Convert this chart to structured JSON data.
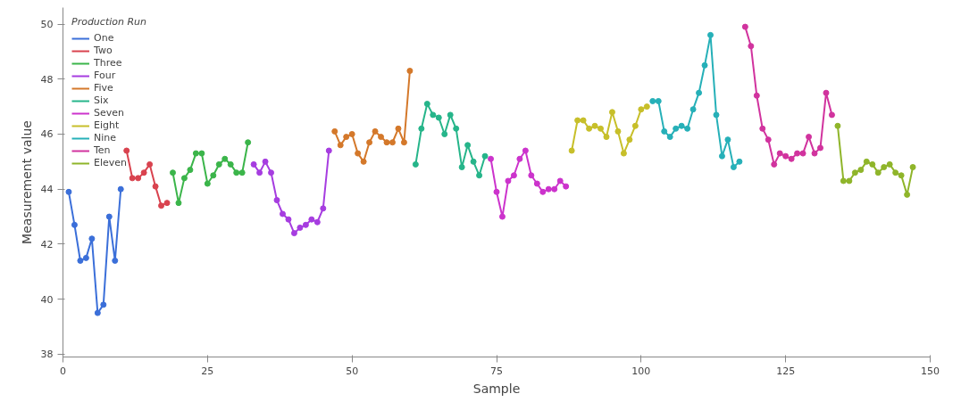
{
  "chart_data": {
    "type": "line",
    "xlabel": "Sample",
    "ylabel": "Measurement value",
    "legend_title": "Production Run",
    "legend": "top left",
    "marker": "circle",
    "grid": false,
    "xlim": [
      0,
      150
    ],
    "xticks": [
      0,
      25,
      50,
      75,
      100,
      125,
      150
    ],
    "ylim": [
      37.9,
      50.6
    ],
    "yticks": [
      38,
      40,
      42,
      44,
      46,
      48,
      50
    ],
    "series": [
      {
        "name": "One",
        "color": "#3b6fd9",
        "x": [
          1,
          2,
          3,
          4,
          5,
          6,
          7,
          8,
          9,
          10
        ],
        "values": [
          43.9,
          42.7,
          41.4,
          41.5,
          42.2,
          39.5,
          39.8,
          43.0,
          41.4,
          44.0
        ]
      },
      {
        "name": "Two",
        "color": "#d9434f",
        "x": [
          11,
          12,
          13,
          14,
          15,
          16,
          17,
          18
        ],
        "values": [
          45.4,
          44.4,
          44.4,
          44.6,
          44.9,
          44.1,
          43.4,
          43.5
        ]
      },
      {
        "name": "Three",
        "color": "#3bb54a",
        "x": [
          19,
          20,
          21,
          22,
          23,
          24,
          25,
          26,
          27,
          28,
          29,
          30,
          31,
          32
        ],
        "values": [
          44.6,
          43.5,
          44.4,
          44.7,
          45.3,
          45.3,
          44.2,
          44.5,
          44.9,
          45.1,
          44.9,
          44.6,
          44.6,
          45.7
        ]
      },
      {
        "name": "Four",
        "color": "#a63de0",
        "x": [
          33,
          34,
          35,
          36,
          37,
          38,
          39,
          40,
          41,
          42,
          43,
          44,
          45,
          46
        ],
        "values": [
          44.9,
          44.6,
          45.0,
          44.6,
          43.6,
          43.1,
          42.9,
          42.4,
          42.6,
          42.7,
          42.9,
          42.8,
          43.3,
          45.4
        ]
      },
      {
        "name": "Five",
        "color": "#d4782a",
        "x": [
          47,
          48,
          49,
          50,
          51,
          52,
          53,
          54,
          55,
          56,
          57,
          58,
          59,
          60
        ],
        "values": [
          46.1,
          45.6,
          45.9,
          46.0,
          45.3,
          45.0,
          45.7,
          46.1,
          45.9,
          45.7,
          45.7,
          46.2,
          45.7,
          48.3
        ]
      },
      {
        "name": "Six",
        "color": "#26b58a",
        "x": [
          61,
          62,
          63,
          64,
          65,
          66,
          67,
          68,
          69,
          70,
          71,
          72,
          73
        ],
        "values": [
          44.9,
          46.2,
          47.1,
          46.7,
          46.6,
          46.0,
          46.7,
          46.2,
          44.8,
          45.6,
          45.0,
          44.5,
          45.2
        ]
      },
      {
        "name": "Seven",
        "color": "#cc33cc",
        "x": [
          74,
          75,
          76,
          77,
          78,
          79,
          80,
          81,
          82,
          83,
          84,
          85,
          86,
          87
        ],
        "values": [
          45.1,
          43.9,
          43.0,
          44.3,
          44.5,
          45.1,
          45.4,
          44.5,
          44.2,
          43.9,
          44.0,
          44.0,
          44.3,
          44.1
        ]
      },
      {
        "name": "Eight",
        "color": "#c7bf2a",
        "x": [
          88,
          89,
          90,
          91,
          92,
          93,
          94,
          95,
          96,
          97,
          98,
          99,
          100,
          101
        ],
        "values": [
          45.4,
          46.5,
          46.5,
          46.2,
          46.3,
          46.2,
          45.9,
          46.8,
          46.1,
          45.3,
          45.8,
          46.3,
          46.9,
          47.0
        ]
      },
      {
        "name": "Nine",
        "color": "#26b0b8",
        "x": [
          102,
          103,
          104,
          105,
          106,
          107,
          108,
          109,
          110,
          111,
          112,
          113,
          114,
          115,
          116,
          117
        ],
        "values": [
          47.2,
          47.2,
          46.1,
          45.9,
          46.2,
          46.3,
          46.2,
          46.9,
          47.5,
          48.5,
          49.6,
          46.7,
          45.2,
          45.8,
          44.8,
          45.0
        ]
      },
      {
        "name": "Ten",
        "color": "#d1339e",
        "x": [
          118,
          119,
          120,
          121,
          122,
          123,
          124,
          125,
          126,
          127,
          128,
          129,
          130,
          131,
          132,
          133
        ],
        "values": [
          49.9,
          49.2,
          47.4,
          46.2,
          45.8,
          44.9,
          45.3,
          45.2,
          45.1,
          45.3,
          45.3,
          45.9,
          45.3,
          45.5,
          47.5,
          46.7
        ]
      },
      {
        "name": "Eleven",
        "color": "#8fb52a",
        "x": [
          134,
          135,
          136,
          137,
          138,
          139,
          140,
          141,
          142,
          143,
          144,
          145,
          146,
          147
        ],
        "values": [
          46.3,
          44.3,
          44.3,
          44.6,
          44.7,
          45.0,
          44.9,
          44.6,
          44.8,
          44.9,
          44.6,
          44.5,
          43.8,
          44.8
        ]
      }
    ]
  }
}
